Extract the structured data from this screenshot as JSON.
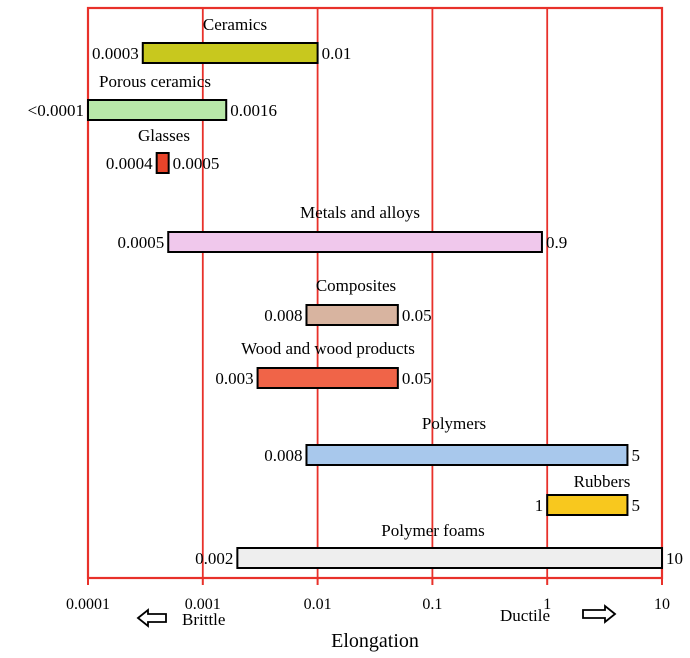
{
  "chart_data": {
    "type": "range-bar",
    "x_scale": "log",
    "xlim": [
      0.0001,
      10
    ],
    "x_ticks": [
      0.0001,
      0.001,
      0.01,
      0.1,
      1,
      10
    ],
    "x_tick_labels": [
      "0.0001",
      "0.001",
      "0.01",
      "0.1",
      "1",
      "10"
    ],
    "xlabel": "Elongation",
    "left_note": "Brittle",
    "right_note": "Ductile",
    "grid": "vertical",
    "axis_color": "#e8312a",
    "series": [
      {
        "name": "Ceramics",
        "min": 0.0003,
        "max": 0.01,
        "min_label": "0.0003",
        "max_label": "0.01",
        "color": "#c8c81e"
      },
      {
        "name": "Porous ceramics",
        "min": 0.0001,
        "max": 0.0016,
        "min_label": "<0.0001",
        "max_label": "0.0016",
        "color": "#b8e8a8"
      },
      {
        "name": "Glasses",
        "min": 0.0004,
        "max": 0.0005,
        "min_label": "0.0004",
        "max_label": "0.0005",
        "color": "#e8442a"
      },
      {
        "name": "Metals and alloys",
        "min": 0.0005,
        "max": 0.9,
        "min_label": "0.0005",
        "max_label": "0.9",
        "color": "#f0c8ec"
      },
      {
        "name": "Composites",
        "min": 0.008,
        "max": 0.05,
        "min_label": "0.008",
        "max_label": "0.05",
        "color": "#d8b4a0"
      },
      {
        "name": "Wood and wood products",
        "min": 0.003,
        "max": 0.05,
        "min_label": "0.003",
        "max_label": "0.05",
        "color": "#f06448"
      },
      {
        "name": "Polymers",
        "min": 0.008,
        "max": 5,
        "min_label": "0.008",
        "max_label": "5",
        "color": "#a8c8ec"
      },
      {
        "name": "Rubbers",
        "min": 1,
        "max": 5,
        "min_label": "1",
        "max_label": "5",
        "color": "#f8c81e"
      },
      {
        "name": "Polymer foams",
        "min": 0.002,
        "max": 10,
        "min_label": "0.002",
        "max_label": "10",
        "color": "#eeeeee"
      }
    ]
  }
}
